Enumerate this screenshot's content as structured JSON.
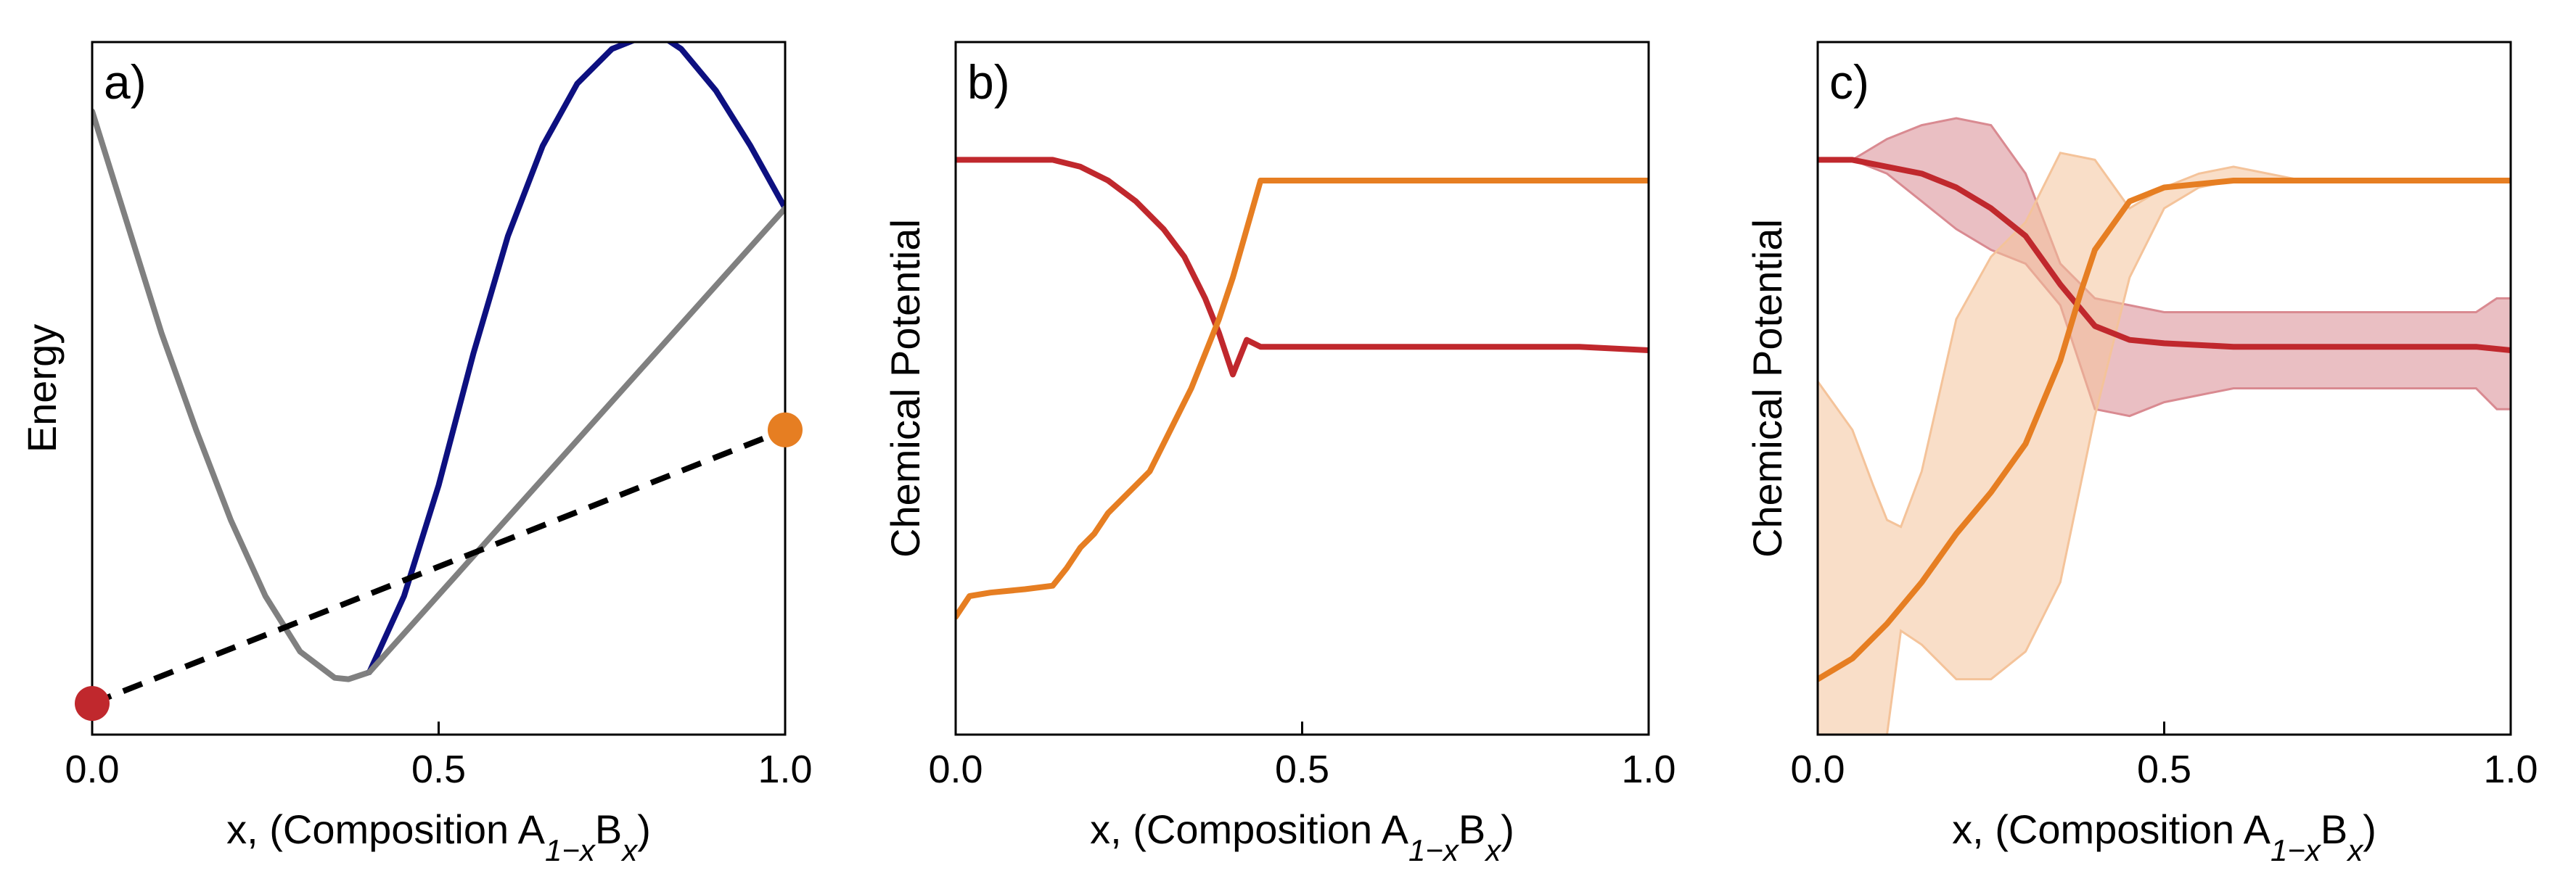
{
  "colors": {
    "red": "#c0282d",
    "orange": "#e67e22",
    "navy": "#0d1080",
    "gray": "#808080",
    "black": "#000000",
    "red_band": "#d98a91",
    "orange_band": "#f4c39a"
  },
  "chart_data": [
    {
      "type": "line",
      "panel_label": "a)",
      "xlabel": "x, (Composition A1−xBx)",
      "ylabel": "Energy",
      "xlim": [
        0.0,
        1.0
      ],
      "ylim": [
        0.0,
        1.0
      ],
      "xticks": [
        "0.0",
        "0.5",
        "1.0"
      ],
      "yticks": [],
      "grid": false,
      "legend": "none",
      "series": [
        {
          "color": "gray",
          "style": "solid",
          "x": [
            0.0,
            0.05,
            0.1,
            0.15,
            0.2,
            0.25,
            0.3,
            0.35,
            0.37,
            0.4
          ],
          "y": [
            0.9,
            0.74,
            0.58,
            0.44,
            0.31,
            0.2,
            0.12,
            0.082,
            0.08,
            0.09
          ]
        },
        {
          "color": "navy",
          "style": "solid",
          "x": [
            0.4,
            0.45,
            0.5,
            0.55,
            0.6,
            0.65,
            0.7,
            0.75,
            0.8,
            0.82,
            0.85,
            0.9,
            0.95,
            1.0
          ],
          "y": [
            0.09,
            0.2,
            0.36,
            0.55,
            0.72,
            0.85,
            0.94,
            0.99,
            1.01,
            1.01,
            0.99,
            0.93,
            0.85,
            0.76
          ]
        },
        {
          "color": "gray",
          "style": "solid",
          "x": [
            0.4,
            1.0
          ],
          "y": [
            0.09,
            0.76
          ]
        },
        {
          "color": "black",
          "style": "dashed",
          "x": [
            0.0,
            1.0
          ],
          "y": [
            0.045,
            0.44
          ]
        }
      ],
      "markers": [
        {
          "x": 0.0,
          "y": 0.045,
          "color": "red"
        },
        {
          "x": 1.0,
          "y": 0.44,
          "color": "orange"
        }
      ]
    },
    {
      "type": "line",
      "panel_label": "b)",
      "xlabel": "x, (Composition A1−xBx)",
      "ylabel": "Chemical Potential",
      "xlim": [
        0.0,
        1.0
      ],
      "ylim": [
        0.0,
        1.0
      ],
      "xticks": [
        "0.0",
        "0.5",
        "1.0"
      ],
      "yticks": [],
      "grid": false,
      "legend": "none",
      "series": [
        {
          "color": "red",
          "style": "solid",
          "x": [
            0.0,
            0.05,
            0.1,
            0.14,
            0.18,
            0.22,
            0.26,
            0.3,
            0.33,
            0.36,
            0.38,
            0.4,
            0.42,
            0.44,
            0.5,
            0.6,
            0.7,
            0.8,
            0.9,
            1.0
          ],
          "y": [
            0.83,
            0.83,
            0.83,
            0.83,
            0.82,
            0.8,
            0.77,
            0.73,
            0.69,
            0.63,
            0.58,
            0.52,
            0.57,
            0.56,
            0.56,
            0.56,
            0.56,
            0.56,
            0.56,
            0.555
          ]
        },
        {
          "color": "orange",
          "style": "solid",
          "x": [
            0.0,
            0.02,
            0.05,
            0.1,
            0.14,
            0.16,
            0.18,
            0.2,
            0.22,
            0.24,
            0.26,
            0.28,
            0.3,
            0.32,
            0.34,
            0.36,
            0.38,
            0.4,
            0.42,
            0.44,
            0.5,
            0.6,
            0.7,
            0.8,
            0.9,
            1.0
          ],
          "y": [
            0.17,
            0.2,
            0.205,
            0.21,
            0.215,
            0.24,
            0.27,
            0.29,
            0.32,
            0.34,
            0.36,
            0.38,
            0.42,
            0.46,
            0.5,
            0.55,
            0.6,
            0.66,
            0.73,
            0.8,
            0.8,
            0.8,
            0.8,
            0.8,
            0.8,
            0.8
          ]
        }
      ]
    },
    {
      "type": "line",
      "panel_label": "c)",
      "xlabel": "x, (Composition A1−xBx)",
      "ylabel": "Chemical Potential",
      "xlim": [
        0.0,
        1.0
      ],
      "ylim": [
        0.0,
        1.0
      ],
      "xticks": [
        "0.0",
        "0.5",
        "1.0"
      ],
      "yticks": [],
      "grid": false,
      "legend": "none",
      "series": [
        {
          "color": "red",
          "style": "solid",
          "x": [
            0.0,
            0.05,
            0.1,
            0.15,
            0.2,
            0.25,
            0.3,
            0.35,
            0.4,
            0.45,
            0.5,
            0.6,
            0.7,
            0.8,
            0.9,
            0.95,
            1.0
          ],
          "y": [
            0.83,
            0.83,
            0.82,
            0.81,
            0.79,
            0.76,
            0.72,
            0.65,
            0.59,
            0.57,
            0.565,
            0.56,
            0.56,
            0.56,
            0.56,
            0.56,
            0.555
          ]
        },
        {
          "color": "orange",
          "style": "solid",
          "x": [
            0.0,
            0.05,
            0.1,
            0.15,
            0.2,
            0.25,
            0.3,
            0.35,
            0.38,
            0.4,
            0.45,
            0.5,
            0.6,
            0.7,
            0.8,
            0.9,
            1.0
          ],
          "y": [
            0.08,
            0.11,
            0.16,
            0.22,
            0.29,
            0.35,
            0.42,
            0.54,
            0.64,
            0.7,
            0.77,
            0.79,
            0.8,
            0.8,
            0.8,
            0.8,
            0.8
          ]
        }
      ],
      "bands": [
        {
          "color": "red_band",
          "x": [
            0.0,
            0.05,
            0.1,
            0.15,
            0.2,
            0.25,
            0.3,
            0.35,
            0.4,
            0.45,
            0.5,
            0.55,
            0.6,
            0.7,
            0.8,
            0.9,
            0.95,
            0.98,
            1.0
          ],
          "upper": [
            0.83,
            0.83,
            0.86,
            0.88,
            0.89,
            0.88,
            0.81,
            0.68,
            0.63,
            0.62,
            0.61,
            0.61,
            0.61,
            0.61,
            0.61,
            0.61,
            0.61,
            0.63,
            0.63
          ],
          "lower": [
            0.83,
            0.83,
            0.81,
            0.77,
            0.73,
            0.7,
            0.68,
            0.62,
            0.47,
            0.46,
            0.48,
            0.49,
            0.5,
            0.5,
            0.5,
            0.5,
            0.5,
            0.47,
            0.47
          ]
        },
        {
          "color": "orange_band",
          "x": [
            0.0,
            0.05,
            0.08,
            0.1,
            0.12,
            0.15,
            0.2,
            0.25,
            0.3,
            0.35,
            0.4,
            0.45,
            0.5,
            0.55,
            0.6,
            0.7,
            0.8,
            0.9,
            1.0
          ],
          "upper": [
            0.51,
            0.44,
            0.36,
            0.31,
            0.3,
            0.38,
            0.6,
            0.69,
            0.74,
            0.84,
            0.83,
            0.76,
            0.79,
            0.81,
            0.82,
            0.8,
            0.8,
            0.8,
            0.8
          ],
          "lower": [
            0.0,
            0.0,
            0.0,
            0.0,
            0.15,
            0.13,
            0.08,
            0.08,
            0.12,
            0.22,
            0.46,
            0.66,
            0.76,
            0.79,
            0.8,
            0.8,
            0.8,
            0.8,
            0.8
          ]
        }
      ]
    }
  ]
}
